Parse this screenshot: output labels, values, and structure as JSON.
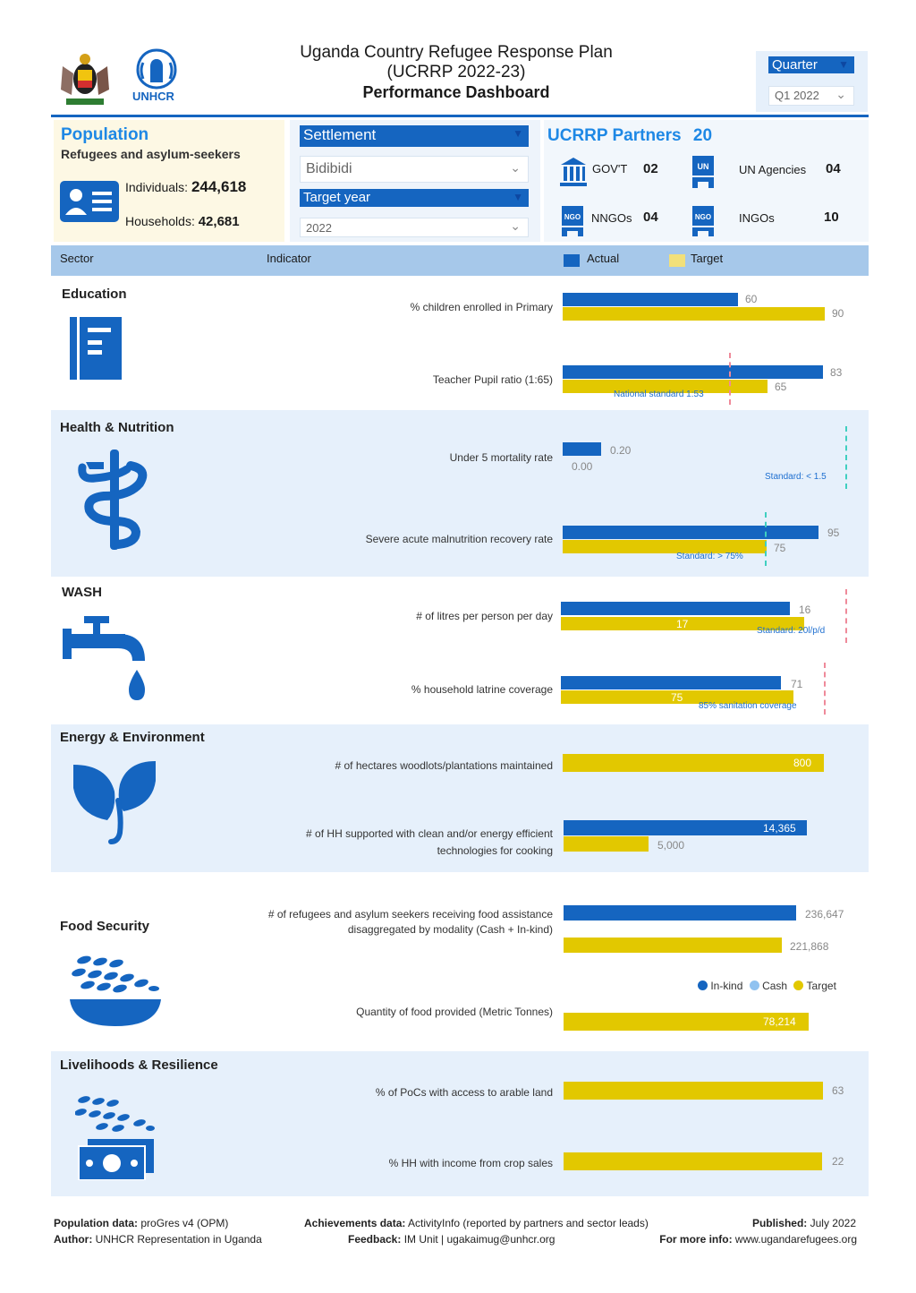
{
  "header": {
    "title_line1": "Uganda Country Refugee Response Plan",
    "title_line2": "(UCRRP 2022-23)",
    "title_line3": "Performance Dashboard",
    "unhcr_logo_text": "UNHCR",
    "quarter_label": "Quarter",
    "quarter_value": "Q1 2022"
  },
  "population": {
    "title": "Population",
    "subtitle": "Refugees and asylum-seekers",
    "individuals_label": "Individuals:",
    "individuals_value": "244,618",
    "households_label": "Households:",
    "households_value": "42,681"
  },
  "filters": {
    "settlement_label": "Settlement",
    "settlement_value": "Bidibidi",
    "target_year_label": "Target year",
    "target_year_value": "2022"
  },
  "partners": {
    "title": "UCRRP Partners",
    "total": "20",
    "govt_label": "GOV'T",
    "govt_value": "02",
    "un_label": "UN Agencies",
    "un_value": "04",
    "nngo_label": "NNGOs",
    "nngo_value": "04",
    "ingo_label": "INGOs",
    "ingo_value": "10",
    "un_icon_text": "UN",
    "ngo_icon_text": "NGO"
  },
  "table_header": {
    "sector": "Sector",
    "indicator": "Indicator",
    "actual": "Actual",
    "target": "Target"
  },
  "sectors": {
    "education": {
      "name": "Education",
      "ind1_label": "% children enrolled in Primary",
      "ind1_actual": "60",
      "ind1_target": "90",
      "ind2_label": "Teacher Pupil ratio (1:65)",
      "ind2_actual": "83",
      "ind2_target": "65",
      "ind2_standard": "National standard 1:53"
    },
    "health": {
      "name": "Health & Nutrition",
      "ind1_label": "Under 5 mortality rate",
      "ind1_actual": "0.20",
      "ind1_target": "0.00",
      "ind1_standard": "Standard: < 1.5",
      "ind2_label": "Severe acute malnutrition recovery rate",
      "ind2_actual": "95",
      "ind2_target": "75",
      "ind2_standard": "Standard: > 75%"
    },
    "wash": {
      "name": "WASH",
      "ind1_label": "# of litres per person per day",
      "ind1_actual": "16",
      "ind1_target": "17",
      "ind1_standard": "Standard: 20l/p/d",
      "ind2_label": "% household latrine coverage",
      "ind2_actual": "71",
      "ind2_target": "75",
      "ind2_standard": "85% sanitation coverage"
    },
    "energy": {
      "name": "Energy & Environment",
      "ind1_label": "# of hectares woodlots/plantations maintained",
      "ind1_target": "800",
      "ind2_label_l1": "# of HH supported with clean and/or energy efficient",
      "ind2_label_l2": "technologies for cooking",
      "ind2_actual": "14,365",
      "ind2_target": "5,000"
    },
    "food": {
      "name": "Food Security",
      "ind1_label_l1": "# of refugees and asylum seekers receiving food assistance",
      "ind1_label_l2": "disaggregated by modality (Cash + In-kind)",
      "ind1_actual": "236,647",
      "ind1_target": "221,868",
      "legend_inkind": "In-kind",
      "legend_cash": "Cash",
      "legend_target": "Target",
      "ind2_label": "Quantity of food provided (Metric Tonnes)",
      "ind2_target": "78,214"
    },
    "livelihoods": {
      "name": "Livelihoods & Resilience",
      "ind1_label": "% of PoCs with access to arable land",
      "ind1_target": "63",
      "ind2_label": "% HH with income from crop sales",
      "ind2_target": "22"
    }
  },
  "footer": {
    "pop_label": "Population data:",
    "pop_value": "proGres v4 (OPM)",
    "author_label": "Author:",
    "author_value": "UNHCR Representation in Uganda",
    "ach_label": "Achievements data:",
    "ach_value": "ActivityInfo (reported by partners and sector leads)",
    "feedback_label": "Feedback:",
    "feedback_value": "IM Unit | ugakaimug@unhcr.org",
    "pub_label": "Published:",
    "pub_value": "July 2022",
    "info_label": "For more info:",
    "info_value": "www.ugandarefugees.org"
  },
  "colors": {
    "actual": "#1565c0",
    "target": "#e2c800",
    "band": "#e6f0fb"
  }
}
